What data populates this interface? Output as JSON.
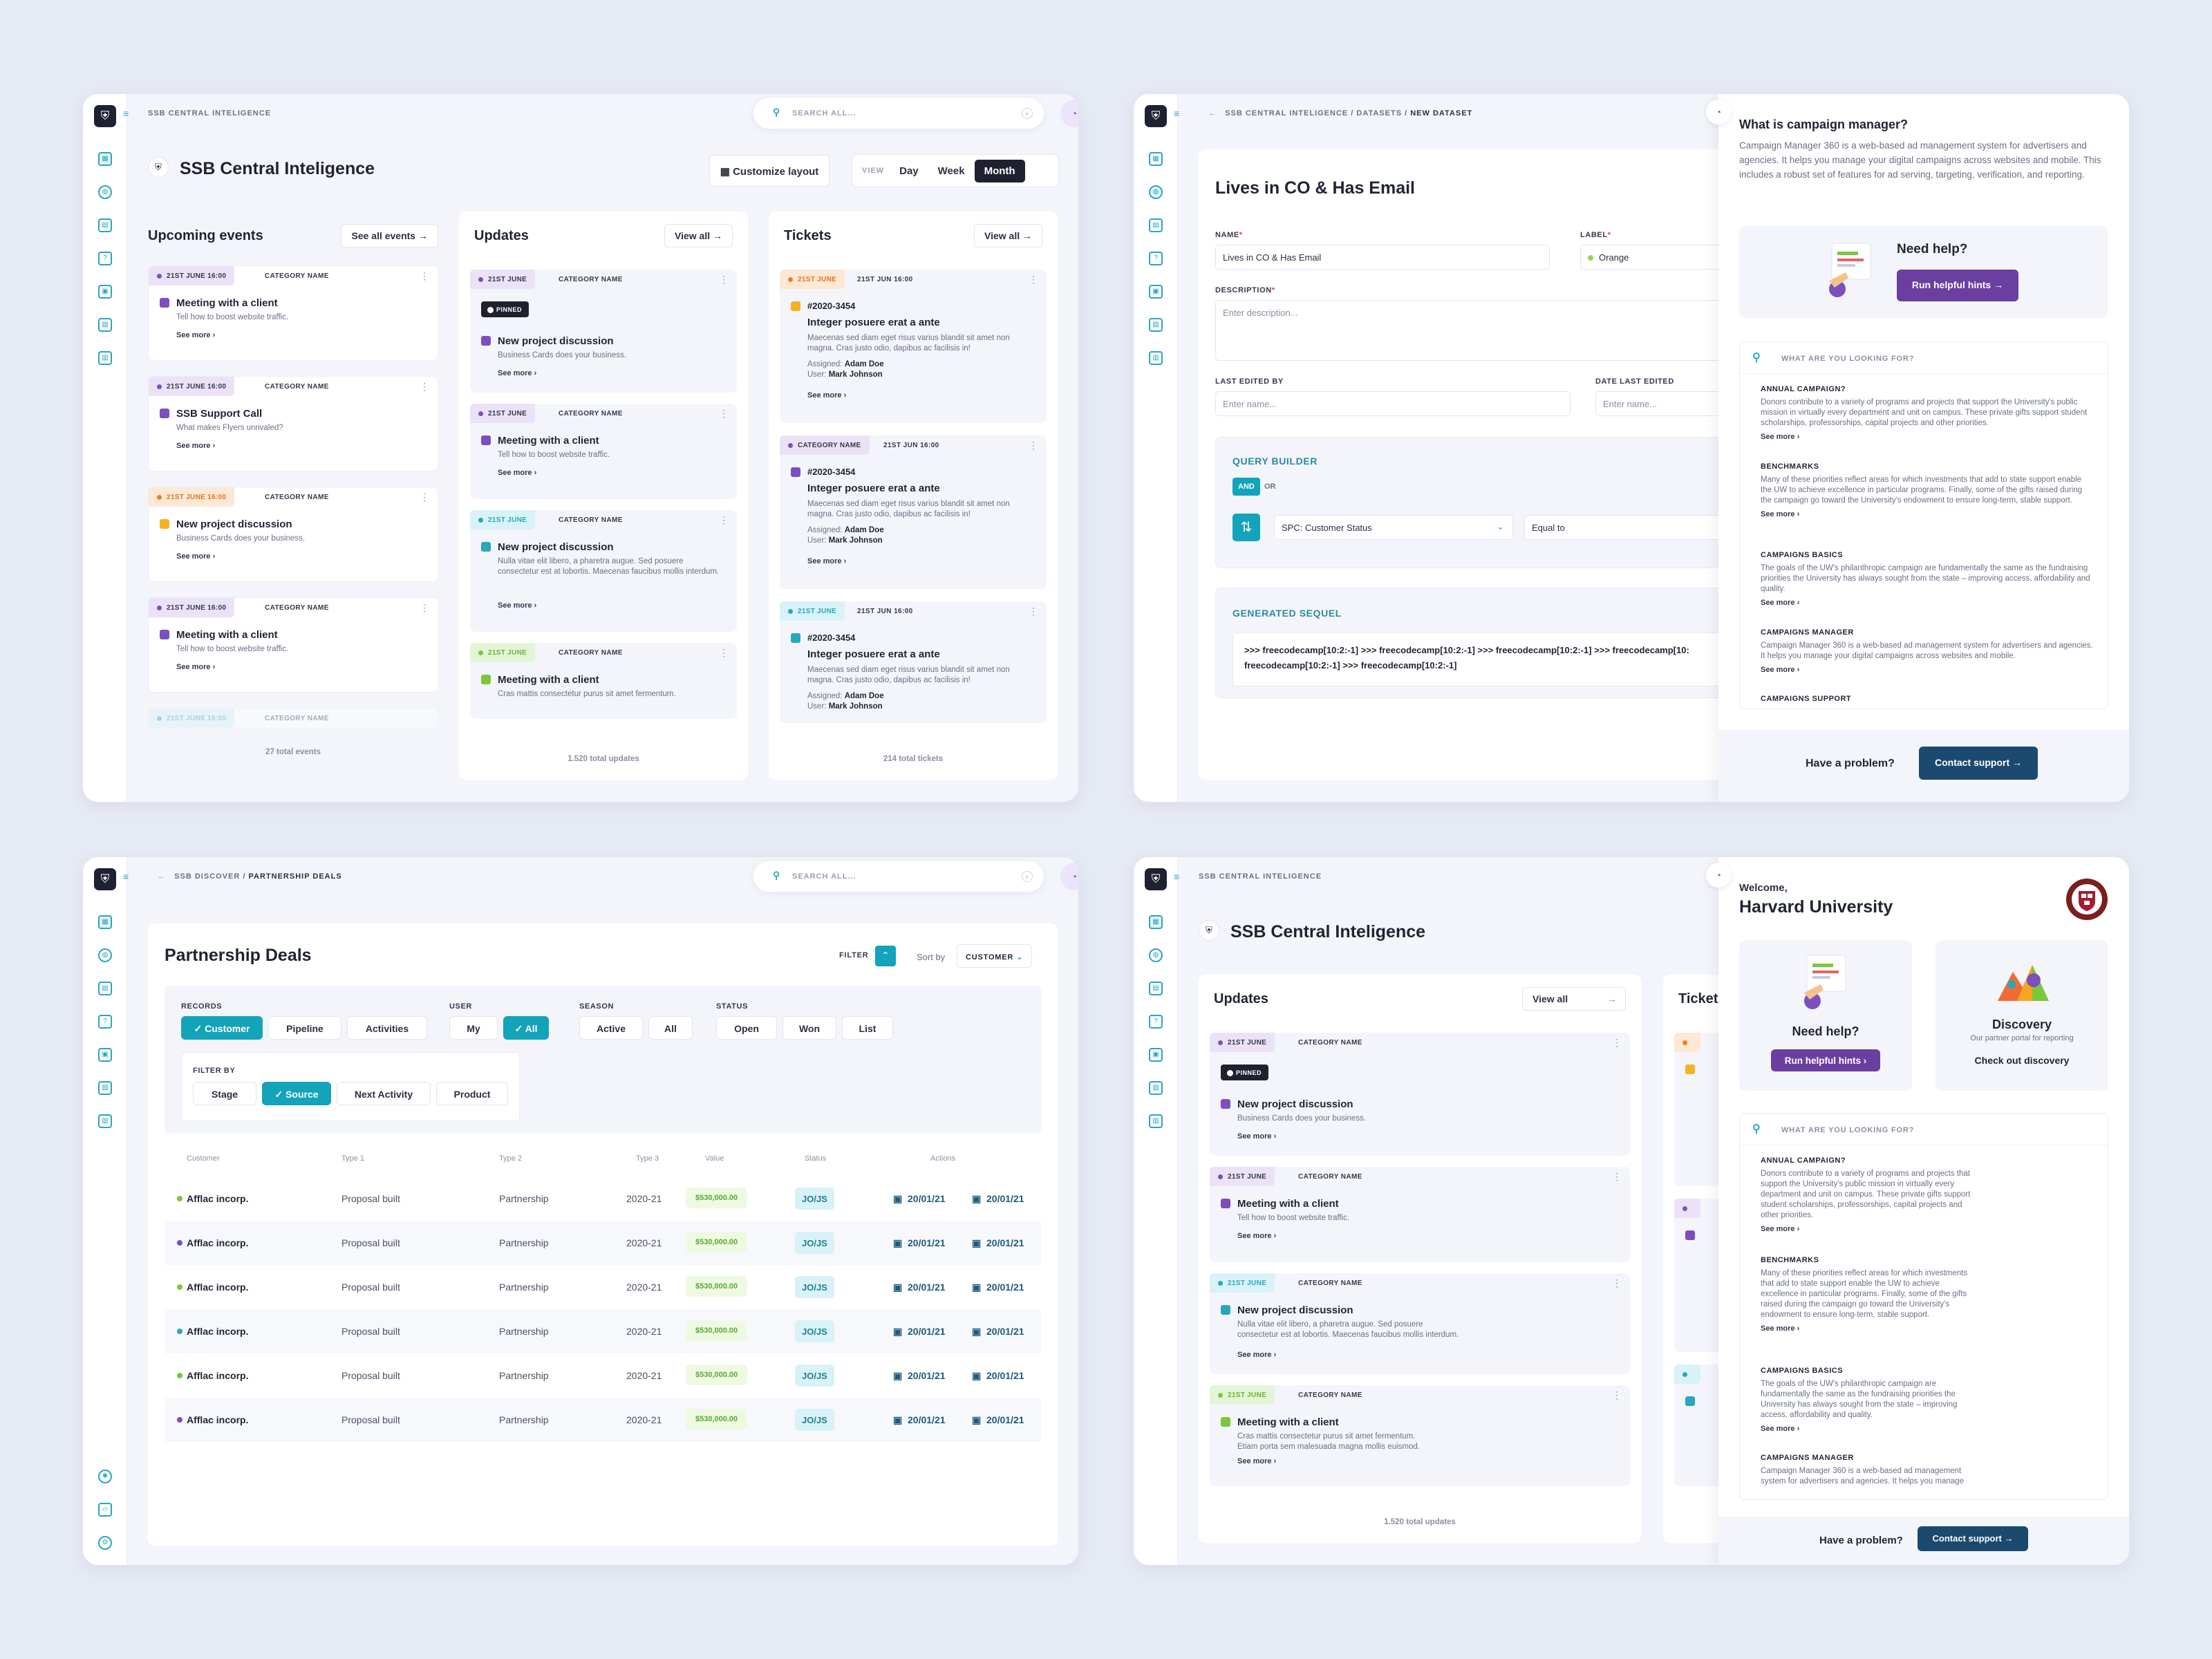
{
  "common": {
    "app_name": "SSB CENTRAL INTELIGENCE",
    "search_placeholder": "SEARCH ALL...",
    "icons": [
      "shield-logo-icon",
      "menu-icon",
      "dashboard-icon",
      "globe-icon",
      "book-icon",
      "question-icon",
      "calendar-icon",
      "images-icon",
      "documents-icon",
      "search-icon",
      "arrow-right-icon",
      "help-icon"
    ],
    "colors": {
      "teal": "#13a3ba",
      "purple": "#7c4fbf",
      "orange": "#f07c20",
      "green": "#7cc63c",
      "navy": "#1b4a6e"
    }
  },
  "dashboard": {
    "title": "SSB Central Inteligence",
    "customize_label": "Customize layout",
    "view_label": "VIEW",
    "view_options": [
      "Day",
      "Week",
      "Month"
    ],
    "view_selected": "Month",
    "events": {
      "title": "Upcoming events",
      "action": "See all events",
      "total": "27 total events",
      "items": [
        {
          "date": "21ST JUNE 16:00",
          "category": "CATEGORY NAME",
          "title": "Meeting with a client",
          "desc": "Tell how to boost website traffic.",
          "more": "See more"
        },
        {
          "date": "21ST JUNE 16:00",
          "category": "CATEGORY NAME",
          "title": "SSB Support Call",
          "desc": "What makes Flyers unrivaled?",
          "more": "See more"
        },
        {
          "date": "21ST JUNE 16:00",
          "category": "CATEGORY NAME",
          "title": "New project discussion",
          "desc": "Business Cards does your business.",
          "more": "See more"
        },
        {
          "date": "21ST JUNE 16:00",
          "category": "CATEGORY NAME",
          "title": "Meeting with a client",
          "desc": "Tell how to boost website traffic.",
          "more": "See more"
        },
        {
          "date": "21ST JUNE 16:00",
          "category": "CATEGORY NAME"
        }
      ]
    },
    "updates": {
      "title": "Updates",
      "action": "View all",
      "total": "1.520 total updates",
      "pinned": "PINNED",
      "items": [
        {
          "date": "21ST JUNE",
          "category": "CATEGORY NAME",
          "title": "New project discussion",
          "desc": "Business Cards does your business.",
          "more": "See more"
        },
        {
          "date": "21ST JUNE",
          "category": "CATEGORY NAME",
          "title": "Meeting with a client",
          "desc": "Tell how to boost website traffic.",
          "more": "See more"
        },
        {
          "date": "21ST JUNE",
          "category": "CATEGORY NAME",
          "title": "New project discussion",
          "desc": "Nulla vitae elit libero, a pharetra augue. Sed posuere consectetur est at lobortis. Maecenas faucibus mollis interdum.",
          "more": "See more"
        },
        {
          "date": "21ST JUNE",
          "category": "CATEGORY NAME",
          "title": "Meeting with a client",
          "desc": "Cras mattis consectetur purus sit amet fermentum."
        }
      ]
    },
    "tickets": {
      "title": "Tickets",
      "action": "View all",
      "total": "214 total tickets",
      "items": [
        {
          "tag": "21ST JUNE",
          "date": "21ST JUN 16:00",
          "id": "#2020-3454",
          "title": "Integer posuere erat a ante",
          "desc": "Maecenas sed diam eget risus varius blandit sit amet non magna. Cras justo odio, dapibus ac facilisis in!",
          "assigned_label": "Assigned:",
          "assigned": "Adam Doe",
          "user_label": "User:",
          "user": "Mark Johnson",
          "more": "See more"
        },
        {
          "tag": "CATEGORY NAME",
          "date": "21ST JUN 16:00",
          "id": "#2020-3454",
          "title": "Integer posuere erat a ante",
          "desc": "Maecenas sed diam eget risus varius blandit sit amet non magna. Cras justo odio, dapibus ac facilisis in!",
          "assigned_label": "Assigned:",
          "assigned": "Adam Doe",
          "user_label": "User:",
          "user": "Mark Johnson",
          "more": "See more"
        },
        {
          "tag": "21ST JUNE",
          "date": "21ST JUN 16:00",
          "id": "#2020-3454",
          "title": "Integer posuere erat a ante",
          "desc": "Maecenas sed diam eget risus varius blandit sit amet non magna. Cras justo odio, dapibus ac facilisis in!",
          "assigned_label": "Assigned:",
          "assigned": "Adam Doe",
          "user_label": "User:",
          "user": "Mark Johnson"
        }
      ]
    }
  },
  "dataset": {
    "breadcrumb": [
      "SSB CENTRAL INTELIGENCE",
      "DATASETS",
      "NEW DATASET"
    ],
    "title": "Lives in CO & Has Email",
    "name_label": "NAME",
    "name_value": "Lives in CO & Has Email",
    "label_label": "LABEL",
    "label_value": "Orange",
    "description_label": "DESCRIPTION",
    "description_placeholder": "Enter description...",
    "last_edited_label": "LAST EDITED BY",
    "last_edited_placeholder": "Enter name...",
    "date_edited_label": "DATE LAST EDITED",
    "date_edited_placeholder": "Enter name...",
    "query_builder": "QUERY BUILDER",
    "and": "AND",
    "or": "OR",
    "field": "SPC: Customer Status",
    "operator": "Equal to",
    "generated": "GENERATED SEQUEL",
    "sequel_line1": ">>> freecodecamp[10:2:-1] >>> freecodecamp[10:2:-1]  >>> freecodecamp[10:2:-1] >>> freecodecamp[10:",
    "sequel_line2": "freecodecamp[10:2:-1] >>> freecodecamp[10:2:-1]"
  },
  "help_drawer": {
    "question": "What is campaign manager?",
    "answer": "Campaign Manager 360 is a web-based ad management system for advertisers and agencies. It helps you manage your digital campaigns across websites and mobile. This includes a robust set of features for ad serving, targeting, verification, and reporting.",
    "need_help": "Need help?",
    "hints_button": "Run helpful hints",
    "search_placeholder": "WHAT ARE YOU LOOKING FOR?",
    "articles": [
      {
        "title": "ANNUAL CAMPAIGN?",
        "desc": "Donors contribute to a variety of programs and projects that support the University's public mission in virtually every department and unit on campus. These private gifts support student scholarships, professorships, capital projects and other priorities.",
        "more": "See more"
      },
      {
        "title": "BENCHMARKS",
        "desc": "Many of these priorities reflect areas for which investments that add to state support enable the UW to achieve excellence in particular programs. Finally, some of the gifts raised during the campaign go toward the University's endowment to ensure long-term, stable support.",
        "more": "See more"
      },
      {
        "title": "CAMPAIGNS BASICS",
        "desc": "The goals of the UW's philanthropic campaign are fundamentally the same as the fundraising priorities the University has always sought from the state – improving access, affordability and quality.",
        "more": "See more"
      },
      {
        "title": "CAMPAIGNS MANAGER",
        "desc": "Campaign Manager 360 is a web-based ad management system for advertisers and agencies. It helps you manage your digital campaigns across websites and mobile.",
        "more": "See more"
      },
      {
        "title": "CAMPAIGNS SUPPORT"
      }
    ],
    "problem": "Have a problem?",
    "contact": "Contact support"
  },
  "deals": {
    "breadcrumb": [
      "SSB DISCOVER",
      "PARTNERSHIP DEALS"
    ],
    "title": "Partnership Deals",
    "filter_label": "FILTER",
    "sort_label": "Sort by",
    "sort_value": "CUSTOMER",
    "records_label": "RECORDS",
    "records": [
      "Customer",
      "Pipeline",
      "Activities"
    ],
    "user_label": "USER",
    "user": [
      "My",
      "All"
    ],
    "season_label": "SEASON",
    "season": [
      "Active",
      "All"
    ],
    "status_label": "STATUS",
    "status": [
      "Open",
      "Won",
      "List"
    ],
    "filter_by_label": "FILTER BY",
    "filter_by": [
      "Stage",
      "Source",
      "Next Activity",
      "Product"
    ],
    "columns": [
      "Customer",
      "Type 1",
      "Type 2",
      "Type 3",
      "Value",
      "Status",
      "Actions"
    ],
    "rows": [
      {
        "dot": "#7cc63c",
        "customer": "Afflac incorp.",
        "type1": "Proposal built",
        "type2": "Partnership",
        "type3": "2020-21",
        "value": "$530,000.00",
        "status": "JO/JS",
        "d1": "20/01/21",
        "d2": "20/01/21"
      },
      {
        "dot": "#7c4fbf",
        "customer": "Afflac incorp.",
        "type1": "Proposal built",
        "type2": "Partnership",
        "type3": "2020-21",
        "value": "$530,000.00",
        "status": "JO/JS",
        "d1": "20/01/21",
        "d2": "20/01/21"
      },
      {
        "dot": "#7cc63c",
        "customer": "Afflac incorp.",
        "type1": "Proposal built",
        "type2": "Partnership",
        "type3": "2020-21",
        "value": "$530,000.00",
        "status": "JO/JS",
        "d1": "20/01/21",
        "d2": "20/01/21"
      },
      {
        "dot": "#2aa6bd",
        "customer": "Afflac incorp.",
        "type1": "Proposal built",
        "type2": "Partnership",
        "type3": "2020-21",
        "value": "$530,000.00",
        "status": "JO/JS",
        "d1": "20/01/21",
        "d2": "20/01/21"
      },
      {
        "dot": "#7cc63c",
        "customer": "Afflac incorp.",
        "type1": "Proposal built",
        "type2": "Partnership",
        "type3": "2020-21",
        "value": "$530,000.00",
        "status": "JO/JS",
        "d1": "20/01/21",
        "d2": "20/01/21"
      },
      {
        "dot": "#7c4fbf",
        "customer": "Afflac incorp.",
        "type1": "Proposal built",
        "type2": "Partnership",
        "type3": "2020-21",
        "value": "$530,000.00",
        "status": "JO/JS",
        "d1": "20/01/21",
        "d2": "20/01/21"
      }
    ]
  },
  "welcome": {
    "greeting": "Welcome,",
    "org": "Harvard University",
    "discovery_title": "Discovery",
    "discovery_sub": "Our partner portal for reporting",
    "discovery_link": "Check out discovery",
    "tickets_title": "Tickets",
    "updates_extra": "Etiam porta sem malesuada magna mollis euismod."
  }
}
